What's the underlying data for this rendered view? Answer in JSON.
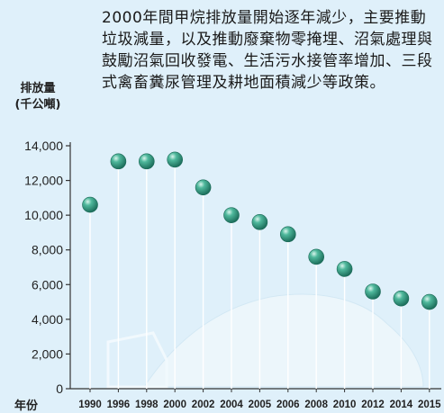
{
  "chart_data": {
    "type": "scatter",
    "annotation": "2000年間甲烷排放量開始逐年減少，主要推動垃圾減量，以及推動廢棄物零掩埋、沼氣處理與鼓勵沼氣回收發電、生活污水接管率增加、三段式禽畜糞尿管理及耕地面積減少等政策。",
    "ylabel_line1": "排放量",
    "ylabel_line2": "(千公噸)",
    "xlabel": "年份",
    "categories": [
      "1990",
      "1996",
      "1998",
      "2000",
      "2002",
      "2004",
      "2005",
      "2006",
      "2008",
      "2010",
      "2012",
      "2014",
      "2015"
    ],
    "values": [
      10600,
      13100,
      13100,
      13200,
      11600,
      10000,
      9600,
      8900,
      7600,
      6900,
      5600,
      5200,
      5000
    ],
    "yticks": [
      "0",
      "2,000",
      "4,000",
      "6,000",
      "8,000",
      "10,000",
      "12,000",
      "14,000"
    ],
    "ylim": [
      0,
      14000
    ],
    "colors": {
      "background": "#dff0fa",
      "stem": "#ffffff",
      "marker": "#2f9c83",
      "marker_highlight": "#c9efe3",
      "axis": "#333333",
      "cloud": "#eaf5fb"
    }
  }
}
